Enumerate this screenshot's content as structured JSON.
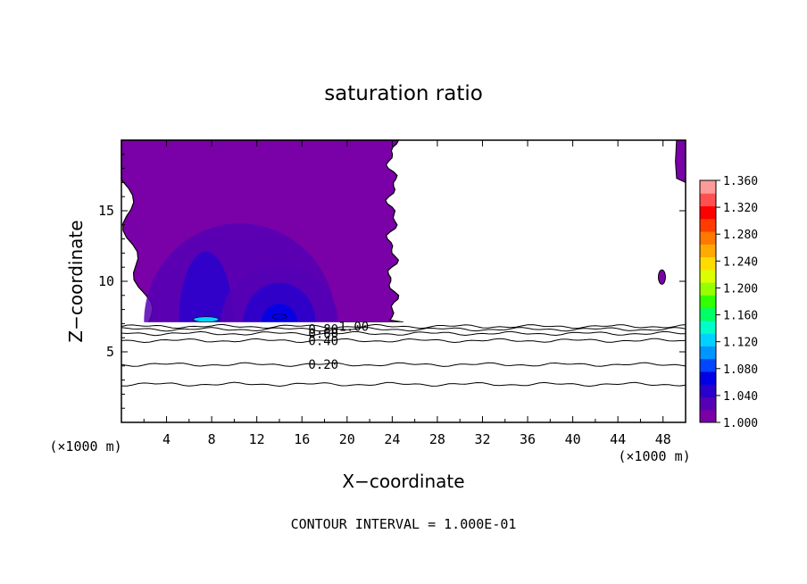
{
  "chart_data": {
    "type": "heatmap",
    "title": "saturation ratio",
    "xlabel": "X−coordinate",
    "ylabel": "Z−coordinate",
    "x_unit_left": "(×1000 m)",
    "x_unit_right": "(×1000 m)",
    "xlim": [
      0,
      50
    ],
    "ylim": [
      0,
      20
    ],
    "x_ticks": [
      4,
      8,
      12,
      16,
      20,
      24,
      28,
      32,
      36,
      40,
      44,
      48
    ],
    "y_ticks": [
      5,
      10,
      15
    ],
    "colorbar": {
      "ticks": [
        "1.360",
        "1.320",
        "1.280",
        "1.240",
        "1.200",
        "1.160",
        "1.120",
        "1.080",
        "1.040",
        "1.000"
      ],
      "range": [
        1.0,
        1.36
      ],
      "colors": [
        "#7a00a8",
        "#5500b4",
        "#2a00cc",
        "#0000e6",
        "#0046ff",
        "#0096ff",
        "#00d2ff",
        "#00ffc8",
        "#00ff64",
        "#32ff00",
        "#96ff00",
        "#dcff00",
        "#ffdc00",
        "#ffaa00",
        "#ff7800",
        "#ff3c00",
        "#ff0000",
        "#ff5050",
        "#ff9a9a"
      ]
    },
    "supersaturated_region": {
      "left_block_x": [
        0,
        25
      ],
      "left_block_z": [
        7.1,
        20
      ],
      "right_edge_x": [
        49.2,
        50
      ],
      "small_patch": {
        "x": 47.9,
        "z": 10.3,
        "value": 1.005
      },
      "cores": [
        {
          "x": 7.5,
          "z": 7.3,
          "peak": 1.12
        },
        {
          "x": 14.0,
          "z": 7.5,
          "peak": 1.05
        }
      ]
    },
    "contour_lines": [
      {
        "label": "1.00",
        "z": 6.8
      },
      {
        "label": "0.80",
        "z": 6.6
      },
      {
        "label": "0.60",
        "z": 6.3
      },
      {
        "label": "0.40",
        "z": 5.8
      },
      {
        "label": "0.20",
        "z": 4.1
      },
      {
        "label": "",
        "z": 2.7
      }
    ],
    "contour_interval_text": "CONTOUR INTERVAL = 1.000E-01"
  }
}
